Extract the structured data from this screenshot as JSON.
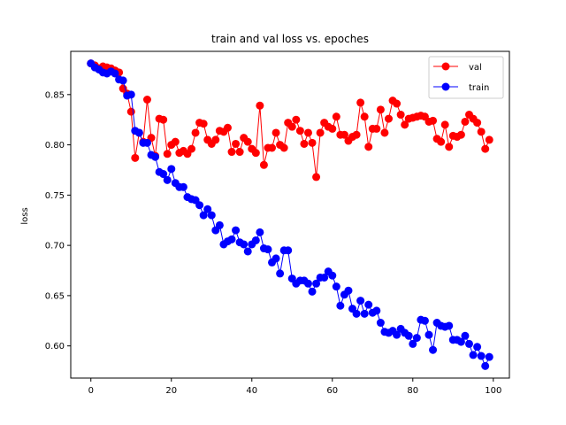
{
  "chart_data": {
    "type": "line",
    "title": "train and val loss vs. epoches",
    "xlabel": "",
    "ylabel": "loss",
    "xlim": [
      -5,
      104
    ],
    "ylim": [
      0.568,
      0.893
    ],
    "xticks": [
      0,
      20,
      40,
      60,
      80,
      100
    ],
    "yticks": [
      0.6,
      0.65,
      0.7,
      0.75,
      0.8,
      0.85
    ],
    "ytick_format": 2,
    "grid": false,
    "legend_position": "top-right",
    "x": [
      0,
      1,
      2,
      3,
      4,
      5,
      6,
      7,
      8,
      9,
      10,
      11,
      12,
      13,
      14,
      15,
      16,
      17,
      18,
      19,
      20,
      21,
      22,
      23,
      24,
      25,
      26,
      27,
      28,
      29,
      30,
      31,
      32,
      33,
      34,
      35,
      36,
      37,
      38,
      39,
      40,
      41,
      42,
      43,
      44,
      45,
      46,
      47,
      48,
      49,
      50,
      51,
      52,
      53,
      54,
      55,
      56,
      57,
      58,
      59,
      60,
      61,
      62,
      63,
      64,
      65,
      66,
      67,
      68,
      69,
      70,
      71,
      72,
      73,
      74,
      75,
      76,
      77,
      78,
      79,
      80,
      81,
      82,
      83,
      84,
      85,
      86,
      87,
      88,
      89,
      90,
      91,
      92,
      93,
      94,
      95,
      96,
      97,
      98,
      99
    ],
    "series": [
      {
        "name": "val",
        "color": "#ff0000",
        "values": [
          0.881,
          0.879,
          0.876,
          0.878,
          0.877,
          0.876,
          0.874,
          0.872,
          0.856,
          0.851,
          0.833,
          0.787,
          0.812,
          0.803,
          0.845,
          0.807,
          0.789,
          0.826,
          0.825,
          0.791,
          0.8,
          0.803,
          0.792,
          0.794,
          0.791,
          0.796,
          0.812,
          0.822,
          0.821,
          0.805,
          0.801,
          0.805,
          0.814,
          0.813,
          0.817,
          0.793,
          0.801,
          0.793,
          0.807,
          0.803,
          0.796,
          0.792,
          0.839,
          0.78,
          0.797,
          0.797,
          0.812,
          0.8,
          0.797,
          0.822,
          0.818,
          0.825,
          0.814,
          0.801,
          0.812,
          0.802,
          0.768,
          0.812,
          0.822,
          0.818,
          0.816,
          0.828,
          0.81,
          0.81,
          0.804,
          0.808,
          0.81,
          0.842,
          0.828,
          0.798,
          0.816,
          0.816,
          0.835,
          0.812,
          0.826,
          0.844,
          0.841,
          0.83,
          0.82,
          0.826,
          0.827,
          0.828,
          0.829,
          0.828,
          0.823,
          0.824,
          0.806,
          0.803,
          0.82,
          0.798,
          0.809,
          0.808,
          0.81,
          0.823,
          0.83,
          0.826,
          0.822,
          0.813,
          0.796,
          0.805
        ]
      },
      {
        "name": "train",
        "color": "#0000ff",
        "values": [
          0.881,
          0.877,
          0.875,
          0.872,
          0.871,
          0.873,
          0.871,
          0.865,
          0.864,
          0.849,
          0.85,
          0.814,
          0.812,
          0.802,
          0.802,
          0.79,
          0.788,
          0.773,
          0.771,
          0.765,
          0.776,
          0.762,
          0.758,
          0.758,
          0.748,
          0.746,
          0.745,
          0.74,
          0.73,
          0.736,
          0.73,
          0.715,
          0.72,
          0.701,
          0.704,
          0.706,
          0.715,
          0.703,
          0.701,
          0.694,
          0.701,
          0.705,
          0.713,
          0.697,
          0.696,
          0.683,
          0.687,
          0.672,
          0.695,
          0.695,
          0.667,
          0.662,
          0.665,
          0.665,
          0.662,
          0.654,
          0.662,
          0.668,
          0.668,
          0.674,
          0.67,
          0.659,
          0.64,
          0.651,
          0.655,
          0.637,
          0.632,
          0.645,
          0.632,
          0.641,
          0.633,
          0.635,
          0.623,
          0.614,
          0.613,
          0.615,
          0.611,
          0.617,
          0.613,
          0.61,
          0.602,
          0.608,
          0.626,
          0.625,
          0.611,
          0.596,
          0.623,
          0.62,
          0.619,
          0.62,
          0.606,
          0.606,
          0.604,
          0.61,
          0.602,
          0.591,
          0.599,
          0.59,
          0.58,
          0.589
        ]
      }
    ]
  }
}
